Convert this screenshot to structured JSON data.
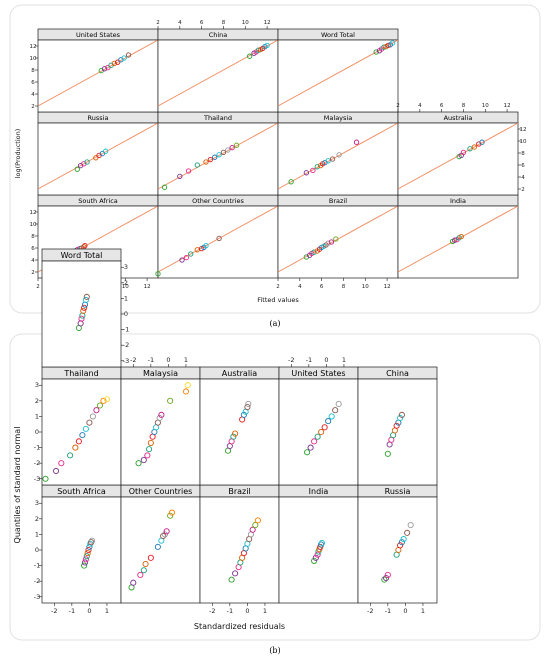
{
  "figure": {
    "sublabels": [
      "(a)",
      "(b)"
    ]
  },
  "chart_data": [
    {
      "type": "scatter",
      "layout": "lattice 4x3, panels from bottom-left",
      "xlabel": "Fitted values",
      "ylabel": "log(Production)",
      "xlim": [
        2,
        13
      ],
      "ylim": [
        1,
        13
      ],
      "xticks": [
        2,
        4,
        6,
        8,
        10,
        12
      ],
      "yticks": [
        2,
        4,
        6,
        8,
        10,
        12
      ],
      "fit_line": {
        "slope": 1,
        "intercept": 0
      },
      "marker": "open circle",
      "panels": [
        {
          "name": "South Africa",
          "x": [
            5.4,
            5.6,
            5.8,
            6.0,
            6.2,
            6.3
          ],
          "y": [
            5.5,
            5.7,
            5.9,
            6.0,
            6.2,
            6.4
          ]
        },
        {
          "name": "Other Countries",
          "x": [
            2.0,
            4.2,
            4.6,
            5.0,
            5.6,
            6.0,
            6.2,
            6.4,
            7.6
          ],
          "y": [
            1.7,
            4.0,
            4.4,
            5.0,
            5.7,
            5.9,
            6.1,
            6.4,
            7.6
          ]
        },
        {
          "name": "Brazil",
          "x": [
            4.6,
            4.9,
            5.1,
            5.3,
            5.6,
            5.8,
            6.0,
            6.2,
            6.4,
            6.6,
            6.9,
            7.3
          ],
          "y": [
            4.5,
            4.8,
            5.1,
            5.3,
            5.5,
            5.8,
            6.1,
            6.3,
            6.5,
            6.8,
            7.0,
            7.5
          ]
        },
        {
          "name": "India",
          "x": [
            7.0,
            7.2,
            7.4,
            7.6,
            7.8
          ],
          "y": [
            7.1,
            7.3,
            7.4,
            7.7,
            7.9
          ]
        },
        {
          "name": "Russia",
          "x": [
            5.6,
            5.9,
            6.2,
            6.5,
            7.3,
            7.6,
            7.9,
            8.2
          ],
          "y": [
            5.3,
            5.9,
            6.2,
            6.5,
            7.2,
            7.6,
            7.9,
            8.3
          ]
        },
        {
          "name": "Thailand",
          "x": [
            2.6,
            4.0,
            4.8,
            5.6,
            6.4,
            6.8,
            7.2,
            7.6,
            8.0,
            8.4,
            8.8,
            9.2
          ],
          "y": [
            2.3,
            4.1,
            5.0,
            6.0,
            6.5,
            6.9,
            7.3,
            7.7,
            8.1,
            8.5,
            8.9,
            9.3
          ]
        },
        {
          "name": "Malaysia",
          "x": [
            3.2,
            4.6,
            5.2,
            5.6,
            5.9,
            6.1,
            6.3,
            6.6,
            7.0,
            7.6,
            9.2
          ],
          "y": [
            3.2,
            4.7,
            5.1,
            5.7,
            5.9,
            6.2,
            6.4,
            6.7,
            7.0,
            7.7,
            9.8
          ]
        },
        {
          "name": "Australia",
          "x": [
            7.6,
            7.8,
            8.0,
            8.6,
            9.0,
            9.4,
            9.7
          ],
          "y": [
            7.4,
            7.6,
            8.1,
            8.7,
            9.0,
            9.5,
            9.8
          ]
        },
        {
          "name": "United States",
          "x": [
            7.8,
            8.1,
            8.4,
            8.7,
            9.0,
            9.3,
            9.6,
            9.9,
            10.3
          ],
          "y": [
            7.9,
            8.2,
            8.4,
            8.8,
            9.1,
            9.3,
            9.7,
            10.0,
            10.5
          ]
        },
        {
          "name": "China",
          "x": [
            10.4,
            10.8,
            11.0,
            11.2,
            11.4,
            11.6,
            11.8,
            12.0
          ],
          "y": [
            10.3,
            10.8,
            11.0,
            11.3,
            11.4,
            11.6,
            11.9,
            12.1
          ]
        },
        {
          "name": "Word Total",
          "x": [
            11.0,
            11.3,
            11.5,
            11.7,
            11.9,
            12.1,
            12.3,
            12.5
          ],
          "y": [
            11.0,
            11.2,
            11.5,
            11.8,
            11.9,
            12.1,
            12.2,
            12.5
          ]
        }
      ]
    },
    {
      "type": "scatter",
      "layout": "lattice 5x2, panels from bottom-left",
      "xlabel": "Standardized residuals",
      "ylabel": "Quantiles of standard normal",
      "xlim": [
        -2.7,
        1.8
      ],
      "ylim": [
        -3.4,
        3.4
      ],
      "xticks": [
        -2,
        -1,
        0,
        1
      ],
      "yticks": [
        -3,
        -2,
        -1,
        0,
        1,
        2,
        3
      ],
      "marker": "open circle",
      "panels": [
        {
          "name": "South Africa",
          "x": [
            -0.3,
            -0.25,
            -0.2,
            -0.15,
            -0.1,
            -0.05,
            0,
            0.05,
            0.1,
            0.15
          ],
          "y": [
            -1.0,
            -0.8,
            -0.6,
            -0.4,
            -0.2,
            0,
            0.2,
            0.4,
            0.5,
            0.6
          ]
        },
        {
          "name": "Other Countries",
          "x": [
            -2.1,
            -2.0,
            -1.6,
            -1.4,
            -1.3,
            -1.0,
            -0.6,
            -0.4,
            -0.3,
            -0.2,
            -0.1,
            0.1,
            0.2
          ],
          "y": [
            -2.4,
            -2.1,
            -1.6,
            -1.3,
            -0.9,
            -0.5,
            0.2,
            0.6,
            0.9,
            1.0,
            1.2,
            2.2,
            2.4
          ]
        },
        {
          "name": "Brazil",
          "x": [
            -0.9,
            -0.7,
            -0.5,
            -0.4,
            -0.3,
            -0.2,
            -0.1,
            0,
            0.1,
            0.2,
            0.3,
            0.45,
            0.6
          ],
          "y": [
            -1.9,
            -1.5,
            -1.1,
            -0.8,
            -0.5,
            -0.2,
            0.1,
            0.4,
            0.7,
            1.0,
            1.3,
            1.6,
            1.9
          ]
        },
        {
          "name": "India",
          "x": [
            -0.7,
            -0.6,
            -0.5,
            -0.45,
            -0.4,
            -0.35,
            -0.3,
            -0.25
          ],
          "y": [
            -0.7,
            -0.5,
            -0.3,
            -0.1,
            0.05,
            0.2,
            0.35,
            0.45
          ]
        },
        {
          "name": "Russia",
          "x": [
            -1.2,
            -1.1,
            -1.0,
            -0.5,
            -0.4,
            -0.3,
            -0.2,
            -0.1,
            0.1,
            0.3
          ],
          "y": [
            -1.9,
            -1.8,
            -1.6,
            -0.3,
            0,
            0.3,
            0.5,
            0.7,
            1.1,
            1.6
          ]
        },
        {
          "name": "Thailand",
          "x": [
            -2.5,
            -1.9,
            -1.6,
            -1.1,
            -0.8,
            -0.6,
            -0.4,
            -0.2,
            0,
            0.2,
            0.4,
            0.6,
            0.8,
            1.0
          ],
          "y": [
            -3.0,
            -2.5,
            -2.0,
            -1.5,
            -1.0,
            -0.6,
            -0.2,
            0.2,
            0.6,
            1.0,
            1.4,
            1.7,
            2.0,
            2.1
          ]
        },
        {
          "name": "Malaysia",
          "x": [
            -1.7,
            -1.4,
            -1.2,
            -1.1,
            -1.0,
            -0.9,
            -0.8,
            -0.7,
            -0.6,
            -0.5,
            -0.4,
            0.1,
            1.0,
            1.1
          ],
          "y": [
            -2.0,
            -1.8,
            -1.5,
            -1.1,
            -0.7,
            -0.3,
            0,
            0.3,
            0.6,
            0.9,
            1.1,
            2.0,
            2.6,
            3.0
          ]
        },
        {
          "name": "Australia",
          "x": [
            -1.1,
            -1.0,
            -0.9,
            -0.8,
            -0.7,
            -0.3,
            -0.2,
            -0.1,
            0,
            0.05
          ],
          "y": [
            -1.2,
            -0.9,
            -0.6,
            -0.3,
            -0.1,
            0.8,
            1.1,
            1.3,
            1.6,
            1.8
          ]
        },
        {
          "name": "United States",
          "x": [
            -1.1,
            -0.9,
            -0.7,
            -0.5,
            -0.3,
            -0.1,
            0.1,
            0.3,
            0.5,
            0.7
          ],
          "y": [
            -1.3,
            -1.0,
            -0.6,
            -0.3,
            0,
            0.3,
            0.7,
            1.0,
            1.4,
            1.8
          ]
        },
        {
          "name": "China",
          "x": [
            -1.0,
            -0.9,
            -0.8,
            -0.7,
            -0.6,
            -0.5,
            -0.4,
            -0.3,
            -0.2
          ],
          "y": [
            -1.4,
            -0.8,
            -0.5,
            -0.2,
            0.1,
            0.4,
            0.6,
            0.9,
            1.1
          ]
        },
        {
          "name": "Word Total",
          "x": [
            -0.6,
            -0.5,
            -0.45,
            -0.4,
            -0.35,
            -0.3,
            -0.25,
            -0.2,
            -0.15
          ],
          "y": [
            -0.9,
            -0.6,
            -0.3,
            -0.1,
            0.2,
            0.4,
            0.6,
            0.9,
            1.1
          ]
        }
      ]
    }
  ],
  "colors": {
    "fit_line": "#f08a5d",
    "points": [
      "#2ca02c",
      "#7b3294",
      "#e7298a",
      "#1b9e77",
      "#d95f02",
      "#e41a1c",
      "#1f78b4",
      "#17becf",
      "#8c564b",
      "#999999",
      "#c51b8a",
      "#66a61e",
      "#ff7f00",
      "#ffd92f"
    ]
  }
}
